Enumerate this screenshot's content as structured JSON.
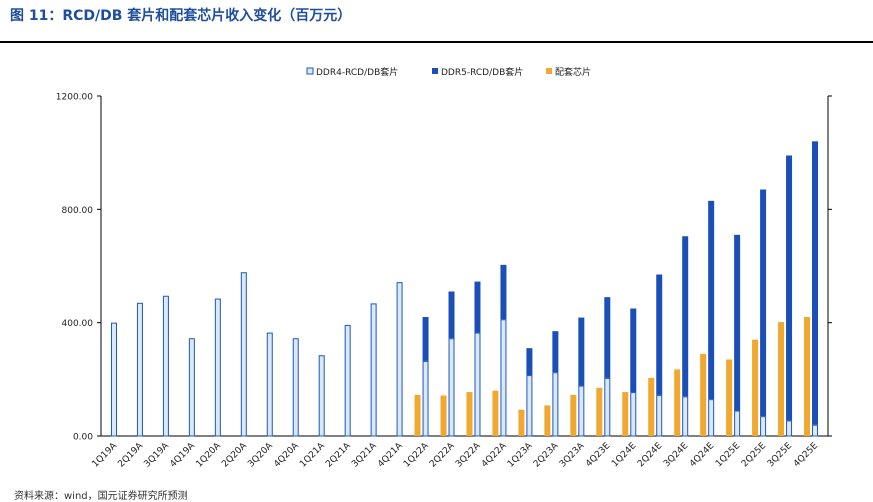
{
  "title": "图 11：RCD/DB 套片和配套芯片收入变化（百万元）",
  "source": "资料来源：wind，国元证券研究所预测",
  "colors": {
    "ddr4_fill": "#dbe8f8",
    "ddr4_stroke": "#1a58c4",
    "ddr5": "#1a4fb8",
    "chip": "#f0a830",
    "title": "#1f4e9c"
  },
  "chart_data": {
    "type": "bar",
    "title": "",
    "xlabel": "",
    "ylabel": "",
    "ylim": [
      0,
      1200
    ],
    "yticks": [
      "0.00",
      "400.00",
      "800.00",
      "1200.00"
    ],
    "legend_position": "top",
    "categories": [
      "1Q19A",
      "2Q19A",
      "3Q19A",
      "4Q19A",
      "1Q20A",
      "2Q20A",
      "3Q20A",
      "4Q20A",
      "1Q21A",
      "2Q21A",
      "3Q21A",
      "4Q21A",
      "1Q22A",
      "2Q22A",
      "3Q22A",
      "4Q22A",
      "1Q23A",
      "2Q23A",
      "3Q23A",
      "4Q23E",
      "1Q24E",
      "2Q24E",
      "3Q24E",
      "4Q24E",
      "1Q25E",
      "2Q25E",
      "3Q25E",
      "4Q25E"
    ],
    "series": [
      {
        "name": "DDR4-RCD/DB套片",
        "stack": "main",
        "values": [
          400,
          470,
          495,
          345,
          485,
          578,
          365,
          345,
          285,
          392,
          468,
          543,
          265,
          345,
          365,
          412,
          215,
          225,
          178,
          205,
          155,
          145,
          140,
          130,
          90,
          70,
          55,
          40
        ]
      },
      {
        "name": "DDR5-RCD/DB套片",
        "stack": "main",
        "values": [
          0,
          0,
          0,
          0,
          0,
          0,
          0,
          0,
          0,
          0,
          0,
          0,
          155,
          165,
          180,
          192,
          95,
          145,
          240,
          285,
          295,
          425,
          565,
          700,
          620,
          800,
          935,
          1000
        ]
      },
      {
        "name": "配套芯片",
        "stack": "chip",
        "values": [
          0,
          0,
          0,
          0,
          0,
          0,
          0,
          0,
          0,
          0,
          0,
          0,
          145,
          143,
          155,
          160,
          93,
          108,
          145,
          170,
          155,
          205,
          235,
          290,
          270,
          340,
          402,
          420
        ]
      }
    ]
  }
}
